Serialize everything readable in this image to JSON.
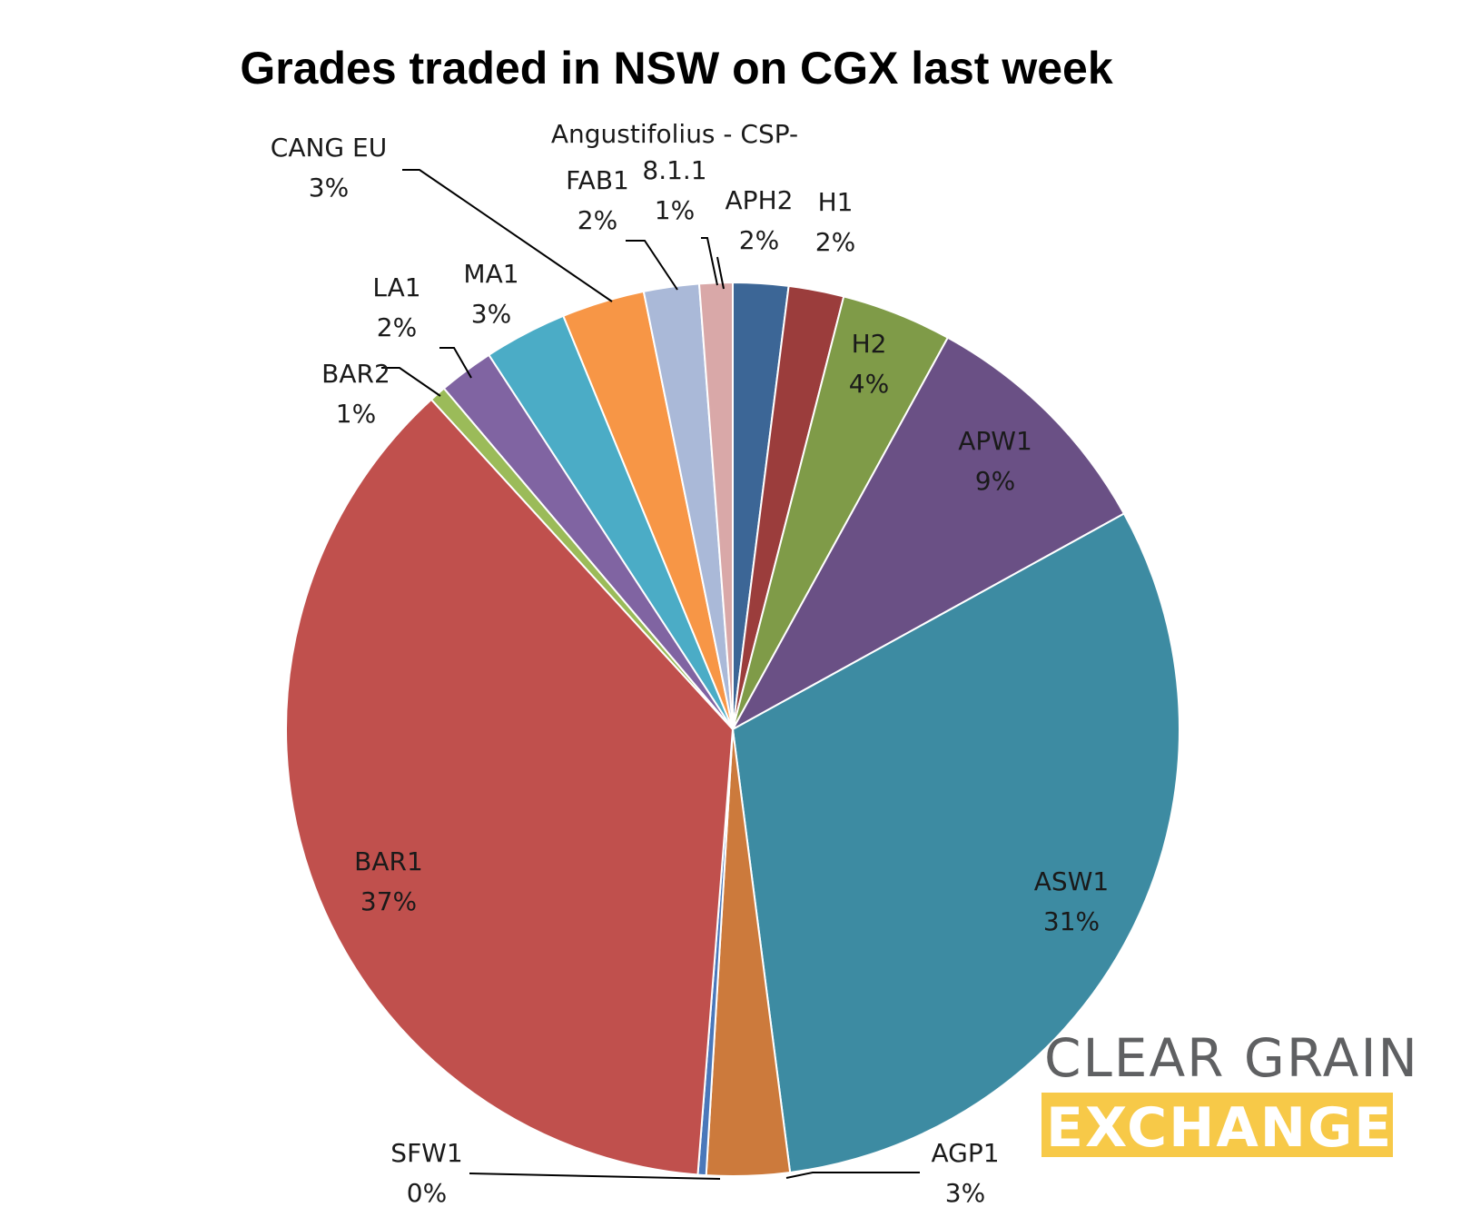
{
  "chart_data": {
    "type": "pie",
    "title": "Grades traded in NSW on CGX last week",
    "slices": [
      {
        "name": "APH2",
        "value": 2,
        "label": "2%",
        "color": "#3c6696"
      },
      {
        "name": "H1",
        "value": 2,
        "label": "2%",
        "color": "#9b3d3c"
      },
      {
        "name": "H2",
        "value": 4,
        "label": "4%",
        "color": "#7f9b48"
      },
      {
        "name": "APW1",
        "value": 9,
        "label": "9%",
        "color": "#6a5085"
      },
      {
        "name": "ASW1",
        "value": 31,
        "label": "31%",
        "color": "#3d8ba2"
      },
      {
        "name": "AGP1",
        "value": 3,
        "label": "3%",
        "color": "#cc7a3c"
      },
      {
        "name": "SFW1",
        "value": 0.3,
        "label": "0%",
        "color": "#4a78ba"
      },
      {
        "name": "BAR1",
        "value": 37,
        "label": "37%",
        "color": "#c0504d"
      },
      {
        "name": "BAR2",
        "value": 0.6,
        "label": "1%",
        "color": "#9bbb59"
      },
      {
        "name": "LA1",
        "value": 2,
        "label": "2%",
        "color": "#8064a2"
      },
      {
        "name": "MA1",
        "value": 3,
        "label": "3%",
        "color": "#4bacc6"
      },
      {
        "name": "CANG EU",
        "value": 3,
        "label": "3%",
        "color": "#f79646"
      },
      {
        "name": "FAB1",
        "value": 2,
        "label": "2%",
        "color": "#aab9d8"
      },
      {
        "name": "Angustifolius - CSP-8.1.1",
        "value": 1.2,
        "label": "1%",
        "color": "#d9a8a8"
      }
    ]
  },
  "logo": {
    "line1": "CLEAR GRAIN",
    "line2": "EXCHANGE",
    "band_color": "#f7c948"
  }
}
